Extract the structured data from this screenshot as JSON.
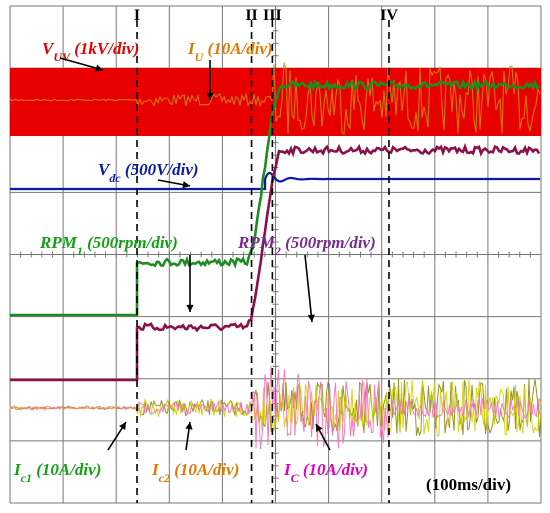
{
  "chart_data": {
    "type": "line",
    "time_scale": "(100ms/div)",
    "phases": [
      "I",
      "II",
      "III",
      "IV"
    ],
    "phase_times_ms": [
      122,
      232,
      252,
      364
    ],
    "x_range_ms": [
      0,
      510
    ],
    "colors": {
      "vuv": "#e80000",
      "iu": "#d08a10",
      "vdc": "#0a1aa8",
      "rpm1": "#1e8c1e",
      "rpm2": "#8b1048",
      "ic1": "#d4d000",
      "ic2": "#8a8a10",
      "ic": "#f470b8",
      "label_green": "#14a014",
      "label_orange": "#e07800",
      "label_blue": "#0a1aa8",
      "label_purple": "#7a2a8a",
      "label_red": "#e80000",
      "label_magenta": "#e000b8"
    },
    "series": [
      {
        "name_parts": [
          "V",
          "UV",
          " (1kV/div)"
        ],
        "key": "vuv",
        "description": "line voltage, constant amplitude band"
      },
      {
        "name_parts": [
          "I",
          "U",
          " (10A/div)"
        ],
        "key": "iu",
        "description": "phase current, starts at phase I, grows after III"
      },
      {
        "name_parts": [
          "V",
          "dc",
          " (500V/div)"
        ],
        "key": "vdc",
        "step_time_ms": 245,
        "description": "dc voltage, steps up with damped oscillation"
      },
      {
        "name_parts": [
          "RPM",
          "1",
          " (500rpm/div)"
        ],
        "key": "rpm1",
        "levels_div": [
          0,
          0.85,
          3.7
        ],
        "description": "motor 1 speed, ramps between II and III"
      },
      {
        "name_parts": [
          "RPM",
          "2",
          " (500rpm/div)"
        ],
        "key": "rpm2",
        "levels_div": [
          0,
          0.85,
          3.7
        ],
        "description": "motor 2 speed, ramps between II and III"
      },
      {
        "name_parts": [
          "I",
          "c1",
          " (10A/div)"
        ],
        "key": "ic1"
      },
      {
        "name_parts": [
          "I",
          "c2",
          " (10A/div)"
        ],
        "key": "ic2"
      },
      {
        "name_parts": [
          "I",
          "C",
          " (10A/div)"
        ],
        "key": "ic",
        "description": "capacitor current, large between II and IV"
      }
    ]
  }
}
